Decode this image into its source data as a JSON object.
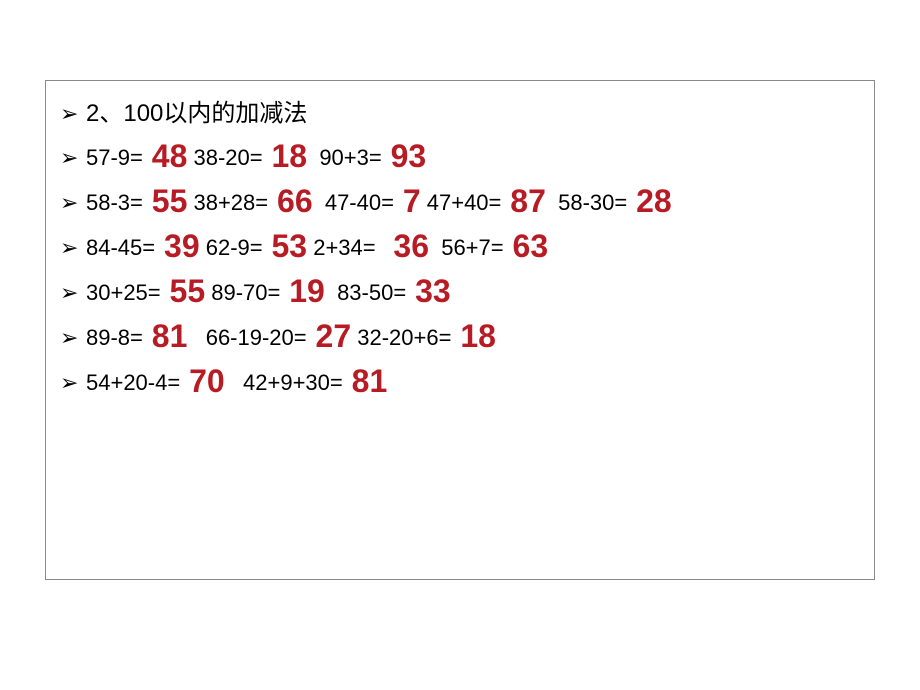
{
  "colors": {
    "answer_color": "#b71c24",
    "text_color": "#000000",
    "border_color": "#888888",
    "background_color": "#ffffff"
  },
  "typography": {
    "expr_fontsize": 22,
    "answer_fontsize": 32,
    "answer_weight": 900,
    "title_fontsize": 24
  },
  "title": "2、100以内的加减法",
  "bullet_char": "➢",
  "rows": [
    [
      {
        "expr": "57-9=",
        "ans": " 48"
      },
      {
        "expr": " 38-20=",
        "ans": " 18"
      },
      {
        "expr": "  90+3=",
        "ans": " 93"
      }
    ],
    [
      {
        "expr": "58-3=",
        "ans": " 55"
      },
      {
        "expr": " 38+28=",
        "ans": " 66"
      },
      {
        "expr": "  47-40=",
        "ans": " 7"
      },
      {
        "expr": " 47+40=",
        "ans": " 87"
      },
      {
        "expr": "  58-30=",
        "ans": " 28"
      }
    ],
    [
      {
        "expr": "84-45=",
        "ans": " 39"
      },
      {
        "expr": " 62-9=",
        "ans": " 53"
      },
      {
        "expr": " 2+34=",
        "ans": "  36"
      },
      {
        "expr": "  56+7=",
        "ans": " 63"
      }
    ],
    [
      {
        "expr": "30+25=",
        "ans": " 55"
      },
      {
        "expr": " 89-70=",
        "ans": " 19"
      },
      {
        "expr": "  83-50=",
        "ans": " 33"
      }
    ],
    [
      {
        "expr": "89-8=",
        "ans": " 81"
      },
      {
        "expr": "   66-19-20=",
        "ans": " 27"
      },
      {
        "expr": " 32-20+6=",
        "ans": " 18"
      }
    ],
    [
      {
        "expr": "54+20-4=",
        "ans": " 70"
      },
      {
        "expr": "   42+9+30=",
        "ans": " 81"
      }
    ]
  ]
}
